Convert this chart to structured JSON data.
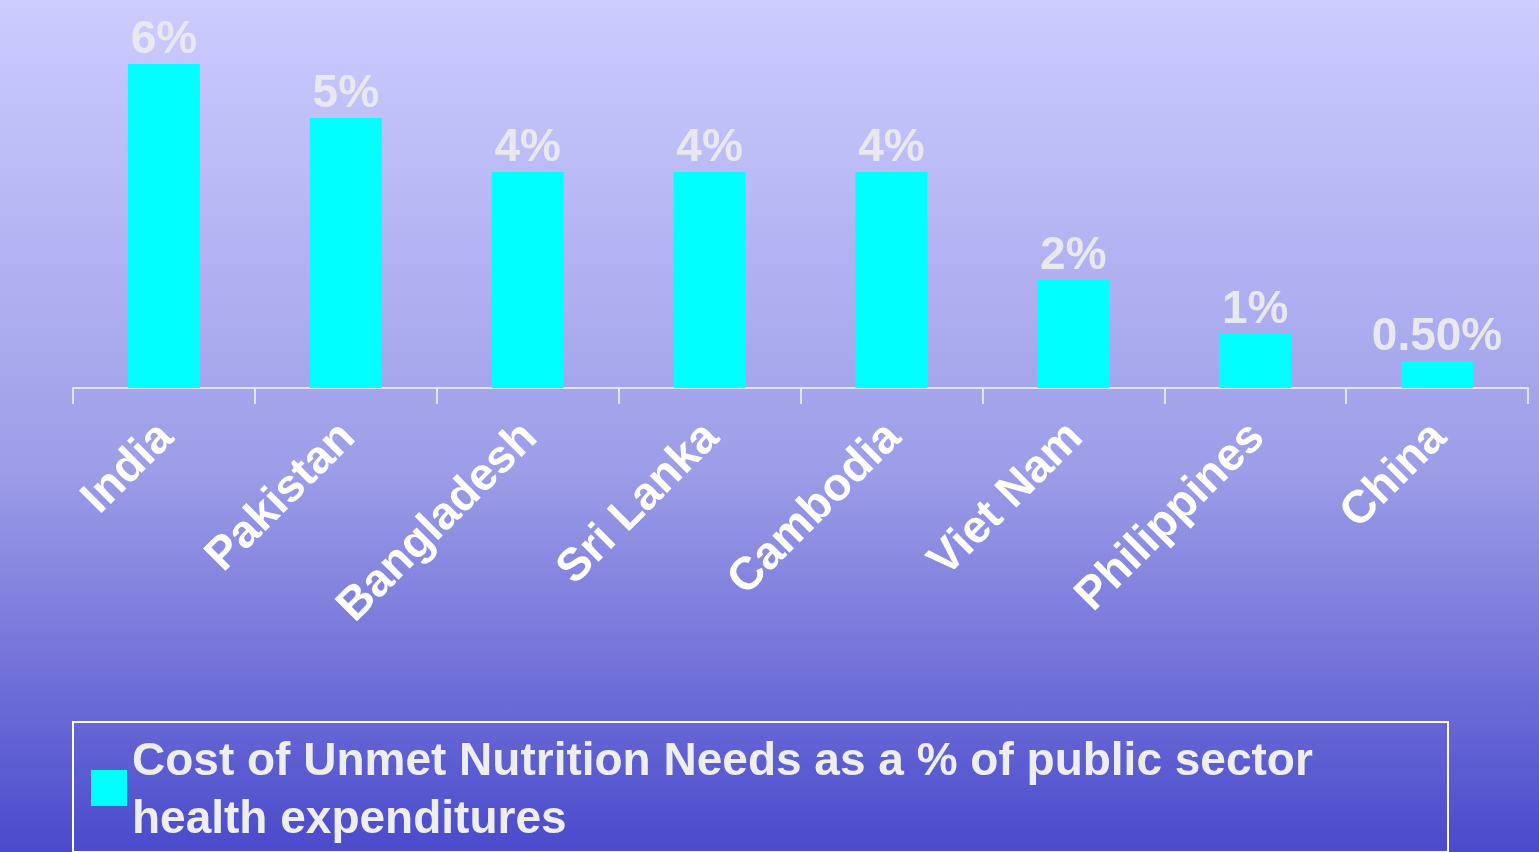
{
  "chart_data": {
    "type": "bar",
    "categories": [
      "India",
      "Pakistan",
      "Bangladesh",
      "Sri Lanka",
      "Cambodia",
      "Viet Nam",
      "Philippines",
      "China"
    ],
    "series": [
      {
        "name": "Cost of Unmet Nutrition Needs as a % of public sector health expenditures",
        "color": "#00ffff",
        "values": [
          6,
          5,
          4,
          4,
          4,
          2,
          1,
          0.5
        ],
        "value_labels": [
          "6%",
          "5%",
          "4%",
          "4%",
          "4%",
          "2%",
          "1%",
          "0.50%"
        ]
      }
    ],
    "legend": "bottom",
    "grid": false
  }
}
